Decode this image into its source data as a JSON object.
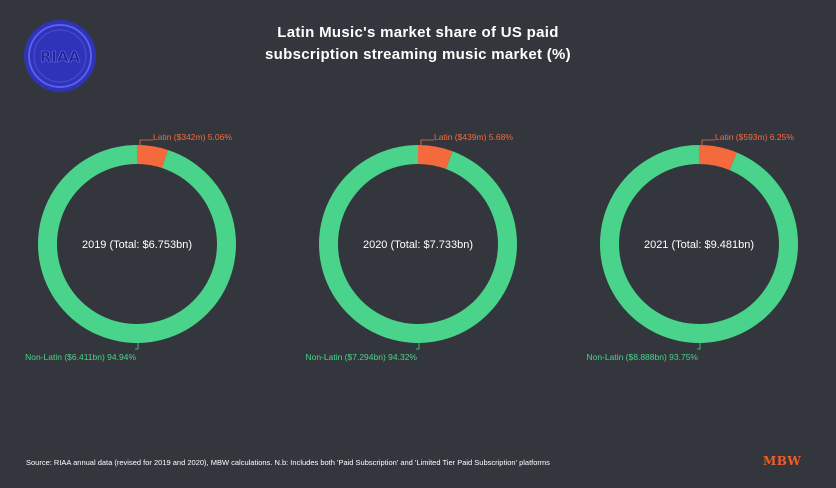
{
  "header": {
    "title_line1": "Latin Music's market share of US paid",
    "title_line2": "subscription streaming music market (%)"
  },
  "logo": {
    "text": "RIAA",
    "icon": "riaa-logo-icon",
    "color": "#3b3fd0"
  },
  "colors": {
    "latin": "#f46a3c",
    "non_latin": "#4ad38a",
    "background": "#33373d"
  },
  "chart_data": [
    {
      "type": "pie",
      "center_label": "2019 (Total: $6.753bn)",
      "slices": [
        {
          "label": "Latin ($342m) 5.06%",
          "value": 5.06
        },
        {
          "label": "Non-Latin ($6.411bn) 94.94%",
          "value": 94.94
        }
      ]
    },
    {
      "type": "pie",
      "center_label": "2020 (Total: $7.733bn)",
      "slices": [
        {
          "label": "Latin ($439m) 5.68%",
          "value": 5.68
        },
        {
          "label": "Non-Latin ($7.294bn) 94.32%",
          "value": 94.32
        }
      ]
    },
    {
      "type": "pie",
      "center_label": "2021 (Total: $9.481bn)",
      "slices": [
        {
          "label": "Latin ($593m) 6.25%",
          "value": 6.25
        },
        {
          "label": "Non-Latin ($8.888bn) 93.75%",
          "value": 93.75
        }
      ]
    }
  ],
  "footer": {
    "source": "Source: RIAA annual data (revised for 2019 and 2020), MBW calculations. N.b: Includes both 'Paid Subscription' and 'Limited Tier Paid Subscription' platforms",
    "brand": "MBW"
  }
}
